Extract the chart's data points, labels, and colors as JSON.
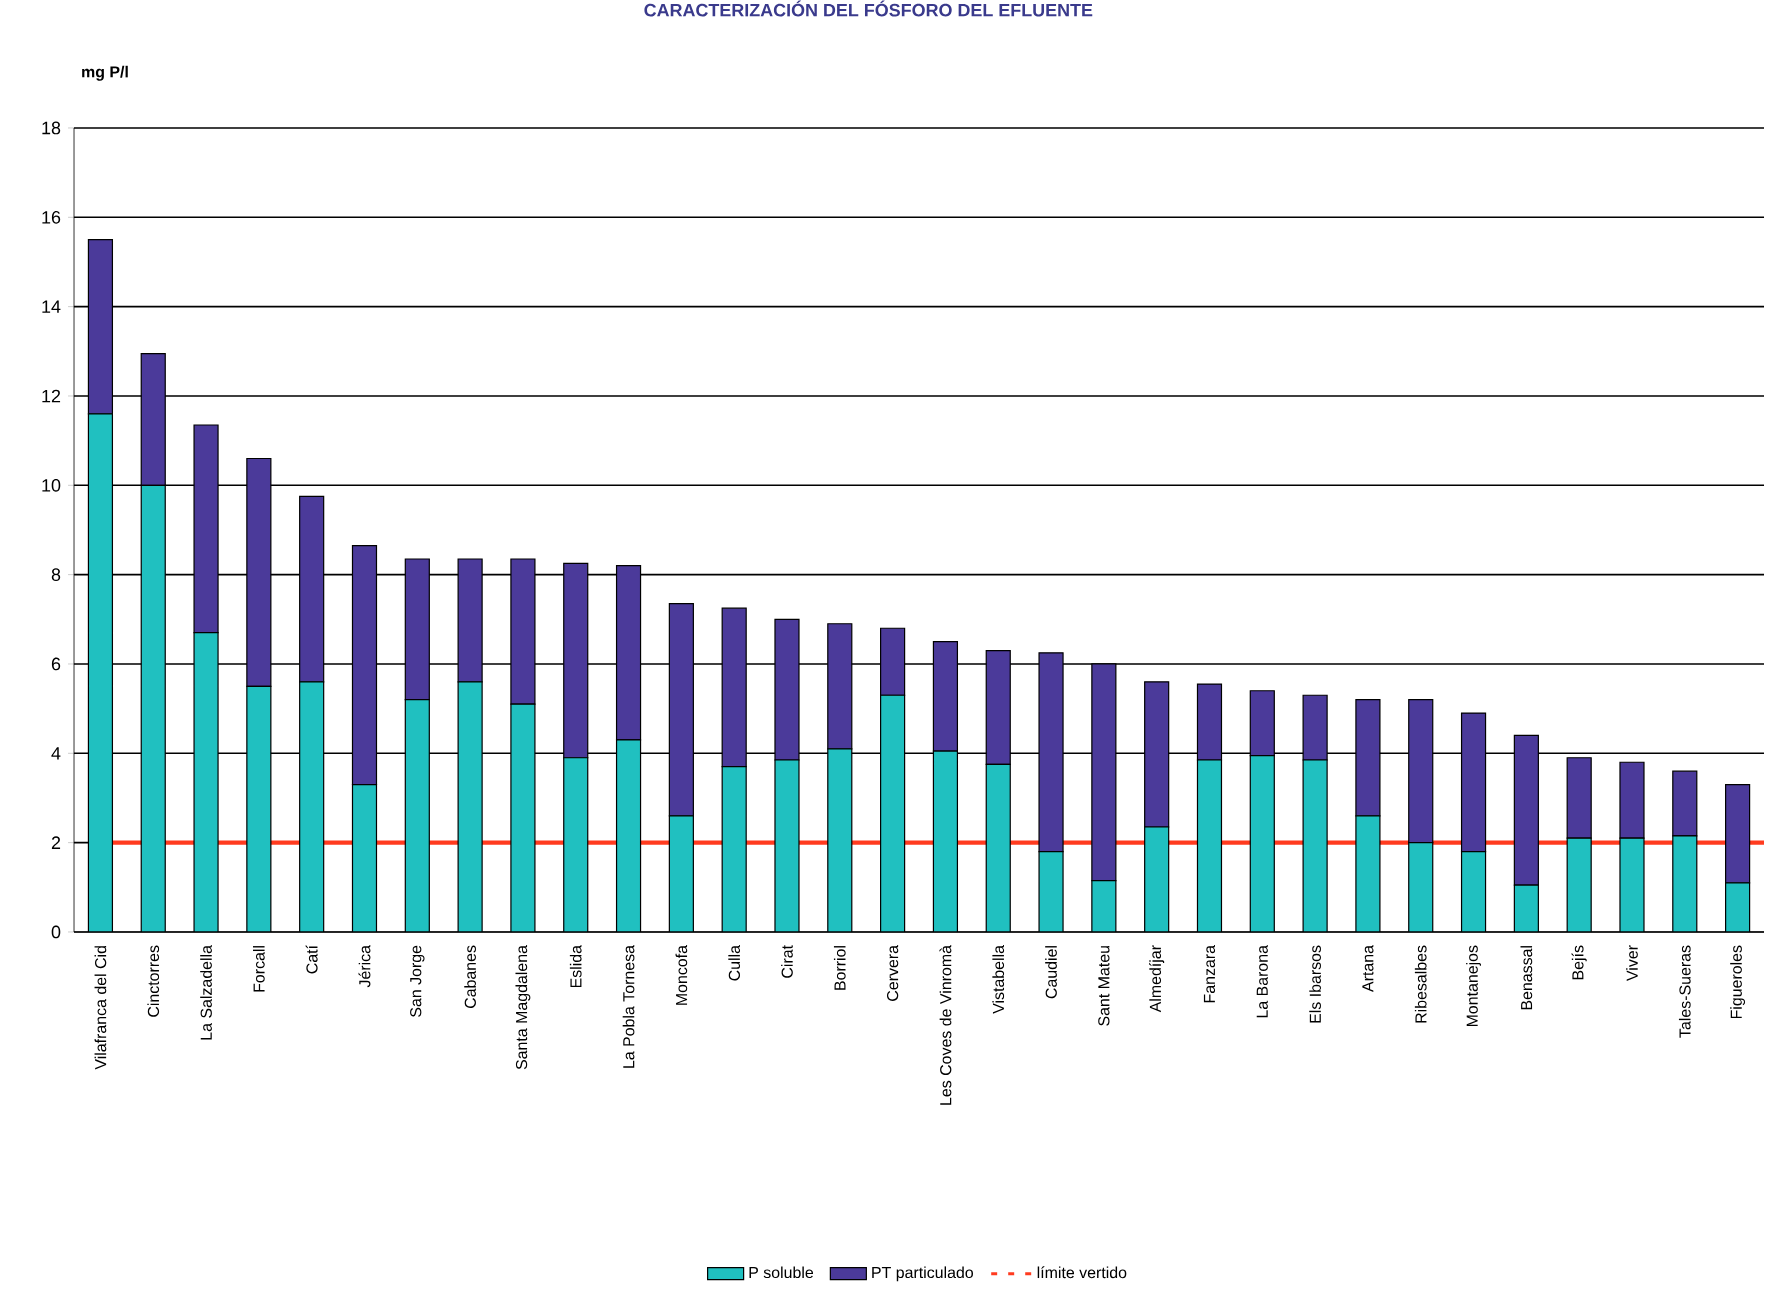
{
  "chart_data": {
    "type": "bar",
    "title": "CARACTERIZACIÓN DEL FÓSFORO DEL EFLUENTE",
    "ylabel": "mg P/l",
    "categories": [
      "Vilafranca del Cid",
      "Cinctorres",
      "La Salzadella",
      "Forcall",
      "Catí",
      "Jérica",
      "San Jorge",
      "Cabanes",
      "Santa Magdalena",
      "Eslida",
      "La Pobla Tornesa",
      "Moncofa",
      "Culla",
      "Cirat",
      "Borriol",
      "Cervera",
      "Les Coves de Vinromà",
      "Vistabella",
      "Caudiel",
      "Sant Mateu",
      "Almedíjar",
      "Fanzara",
      "La Barona",
      "Els Ibarsos",
      "Artana",
      "Ribesalbes",
      "Montanejos",
      "Benassal",
      "Bejís",
      "Viver",
      "Tales-Sueras",
      "Figueroles"
    ],
    "stacked": true,
    "series": [
      {
        "name": "P soluble",
        "color": "#20c0c0",
        "values": [
          11.6,
          10.0,
          6.7,
          5.5,
          5.6,
          3.3,
          5.2,
          5.6,
          5.1,
          3.9,
          4.3,
          2.6,
          3.7,
          3.85,
          4.1,
          5.3,
          4.05,
          3.75,
          1.8,
          1.15,
          2.35,
          3.85,
          3.95,
          3.85,
          2.6,
          2.0,
          1.8,
          1.05,
          2.1,
          2.1,
          2.15,
          1.1
        ]
      },
      {
        "name": "PT particulado",
        "color": "#4b3a9a",
        "values": [
          3.9,
          2.95,
          4.65,
          5.1,
          4.15,
          5.35,
          3.15,
          2.75,
          3.25,
          4.35,
          3.9,
          4.75,
          3.55,
          3.15,
          2.8,
          1.5,
          2.45,
          2.55,
          4.45,
          4.85,
          3.25,
          1.7,
          1.45,
          1.45,
          2.6,
          3.2,
          3.1,
          3.35,
          1.8,
          1.7,
          1.45,
          2.2
        ]
      }
    ],
    "ref_lines": [
      {
        "axis": "y",
        "value": 2,
        "label": "límite vertido",
        "color": "#ff3b1f"
      }
    ],
    "ylim": [
      0,
      18
    ],
    "yticks": [
      0,
      2,
      4,
      6,
      8,
      10,
      12,
      14,
      16,
      18
    ],
    "grid": "y",
    "legend": "bottom"
  }
}
